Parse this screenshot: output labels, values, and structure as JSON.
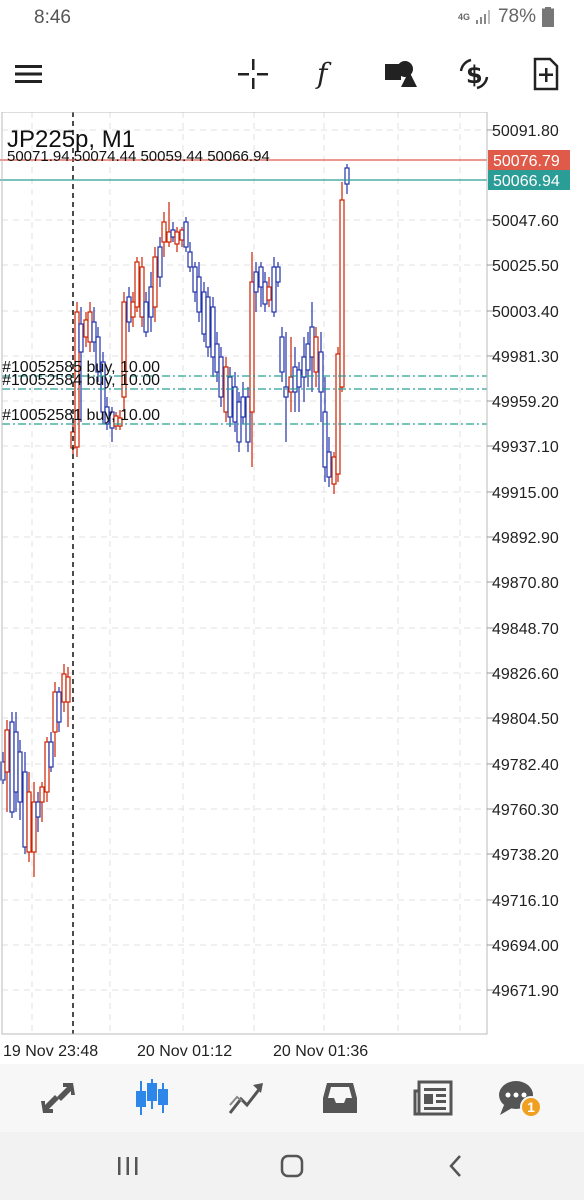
{
  "status_bar": {
    "time": "8:46",
    "network": "4G",
    "battery": "78%"
  },
  "toolbar": {
    "icons": [
      "menu-icon",
      "crosshair-icon",
      "function-icon",
      "objects-icon",
      "trade-icon",
      "new-order-icon"
    ]
  },
  "chart": {
    "symbol_title": "JP225p, M1",
    "ohlc_text": "50071.94 50074.44 50059.44 50066.94",
    "price_labels": [
      "50091.80",
      "50047.60",
      "50025.50",
      "50003.40",
      "49981.30",
      "49959.20",
      "49937.10",
      "49915.00",
      "49892.90",
      "49870.80",
      "49848.70",
      "49826.60",
      "49804.50",
      "49782.40",
      "49760.30",
      "49738.20",
      "49716.10",
      "49694.00",
      "49671.90"
    ],
    "ask_label": "50076.79",
    "bid_label": "50066.94",
    "time_labels": [
      "19 Nov 23:48",
      "20 Nov 01:12",
      "20 Nov 01:36"
    ],
    "orders": [
      "#10052585 buy, 10.00",
      "#10052584 buy, 10.00",
      "#10052581 buy, 10.00"
    ],
    "colors": {
      "bull": "#2233aa",
      "bear": "#cc2200",
      "ask_line": "#e05a4a",
      "bid_line": "#2a9d96",
      "grid": "#e2e2e2"
    }
  },
  "bottom_nav": {
    "items": [
      "quotes-icon",
      "chart-icon",
      "trade-icon",
      "history-icon",
      "news-icon",
      "messages-icon"
    ],
    "messages_badge": "1"
  }
}
